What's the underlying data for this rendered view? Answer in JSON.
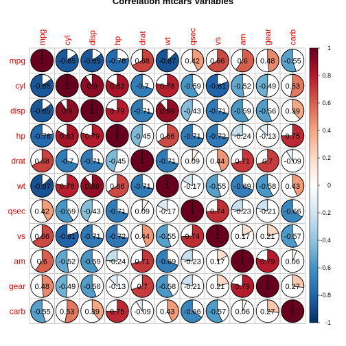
{
  "chart_data": {
    "type": "heatmap",
    "title": "Correlation mtcars Variables",
    "variables": [
      "mpg",
      "cyl",
      "disp",
      "hp",
      "drat",
      "wt",
      "qsec",
      "vs",
      "am",
      "gear",
      "carb"
    ],
    "matrix": [
      [
        1,
        -0.85,
        -0.85,
        -0.78,
        0.68,
        -0.87,
        0.42,
        0.66,
        0.6,
        0.48,
        -0.55
      ],
      [
        -0.85,
        1,
        0.9,
        0.83,
        -0.7,
        0.78,
        -0.59,
        -0.81,
        -0.52,
        -0.49,
        0.53
      ],
      [
        -0.85,
        0.9,
        1,
        0.79,
        -0.71,
        0.89,
        -0.43,
        -0.71,
        -0.59,
        -0.56,
        0.39
      ],
      [
        -0.78,
        0.83,
        0.79,
        1,
        -0.45,
        0.66,
        -0.71,
        -0.72,
        -0.24,
        -0.13,
        0.75
      ],
      [
        0.68,
        -0.7,
        -0.71,
        -0.45,
        1,
        -0.71,
        0.09,
        0.44,
        0.71,
        0.7,
        -0.09
      ],
      [
        -0.87,
        0.78,
        0.89,
        0.66,
        -0.71,
        1,
        -0.17,
        -0.55,
        -0.69,
        -0.58,
        0.43
      ],
      [
        0.42,
        -0.59,
        -0.43,
        -0.71,
        0.09,
        -0.17,
        1,
        0.74,
        -0.23,
        -0.21,
        -0.66
      ],
      [
        0.66,
        -0.81,
        -0.71,
        -0.72,
        0.44,
        -0.55,
        0.74,
        1,
        0.17,
        0.21,
        -0.57
      ],
      [
        0.6,
        -0.52,
        -0.59,
        -0.24,
        0.71,
        -0.69,
        -0.23,
        0.17,
        1,
        0.79,
        0.06
      ],
      [
        0.48,
        -0.49,
        -0.56,
        -0.13,
        0.7,
        -0.58,
        -0.21,
        0.21,
        0.79,
        1,
        0.27
      ],
      [
        -0.55,
        0.53,
        0.39,
        0.75,
        -0.09,
        0.43,
        -0.66,
        -0.57,
        0.06,
        0.27,
        1
      ]
    ],
    "cell_labels": [
      [
        "1",
        "-0.85",
        "-0.85",
        "-0.78",
        "0.68",
        "-0.87",
        "0.42",
        "0.66",
        "0.6",
        "0.48",
        "-0.55"
      ],
      [
        "-0.85",
        "1",
        "0.9",
        "0.83",
        "-0.7",
        "0.78",
        "-0.59",
        "-0.81",
        "-0.52",
        "-0.49",
        "0.53"
      ],
      [
        "-0.85",
        "0.9",
        "1",
        "0.79",
        "-0.71",
        "0.89",
        "-0.43",
        "-0.71",
        "-0.59",
        "-0.56",
        "0.39"
      ],
      [
        "-0.78",
        "0.83",
        "0.79",
        "1",
        "-0.45",
        "0.66",
        "-0.71",
        "-0.72",
        "-0.24",
        "-0.13",
        "0.75"
      ],
      [
        "0.68",
        "-0.7",
        "-0.71",
        "-0.45",
        "1",
        "-0.71",
        "0.09",
        "0.44",
        "0.71",
        "0.7",
        "-0.09"
      ],
      [
        "-0.87",
        "0.78",
        "0.89",
        "0.66",
        "-0.71",
        "1",
        "-0.17",
        "-0.55",
        "-0.69",
        "-0.58",
        "0.43"
      ],
      [
        "0.42",
        "-0.59",
        "-0.43",
        "-0.71",
        "0.09",
        "-0.17",
        "1",
        "0.74",
        "-0.23",
        "-0.21",
        "-0.66"
      ],
      [
        "0.66",
        "-0.81",
        "-0.71",
        "-0.72",
        "0.44",
        "-0.55",
        "0.74",
        "1",
        "0.17",
        "0.21",
        "-0.57"
      ],
      [
        "0.6",
        "-0.52",
        "-0.59",
        "-0.24",
        "0.71",
        "-0.69",
        "-0.23",
        "0.17",
        "1",
        "0.79",
        "0.06"
      ],
      [
        "0.48",
        "-0.49",
        "-0.56",
        "-0.13",
        "0.7",
        "-0.58",
        "-0.21",
        "0.21",
        "0.79",
        "1",
        "0.27"
      ],
      [
        "-0.55",
        "0.53",
        "0.39",
        "0.75",
        "-0.09",
        "0.43",
        "-0.66",
        "-0.57",
        "0.06",
        "0.27",
        "1"
      ]
    ],
    "glyph": "pie",
    "colorbar": {
      "range": [
        -1,
        1
      ],
      "ticks": [
        "1",
        "0.8",
        "0.6",
        "0.4",
        "0.2",
        "0",
        "-0.2",
        "-0.4",
        "-0.6",
        "-0.8",
        "-1"
      ],
      "colors": [
        "#67001f",
        "#b2182b",
        "#d6604d",
        "#f4a582",
        "#fddbc7",
        "#ffffff",
        "#d1e5f0",
        "#92c5de",
        "#4393c3",
        "#2166ac",
        "#053061"
      ]
    },
    "label_color": "#e00000",
    "grid": true
  }
}
